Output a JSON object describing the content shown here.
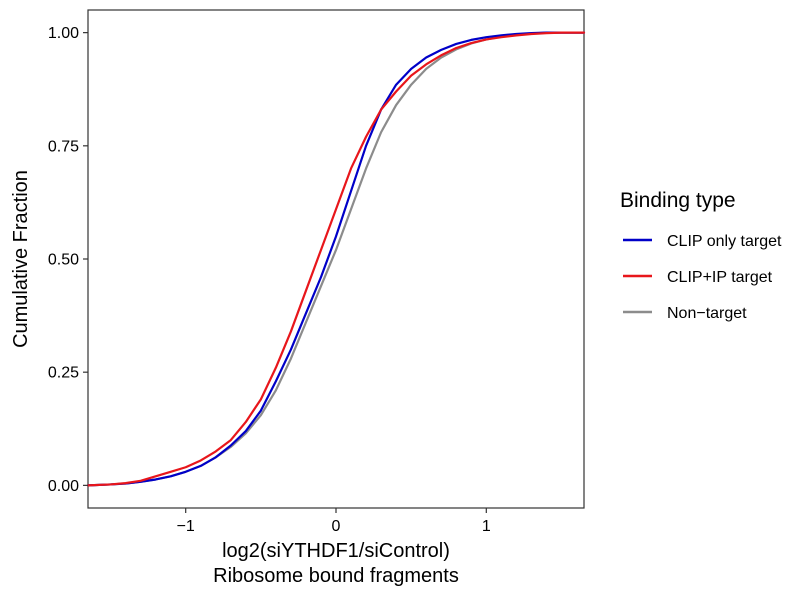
{
  "chart_data": {
    "type": "line",
    "xlabel": [
      "log2(siYTHDF1/siControl)",
      "Ribosome bound fragments"
    ],
    "ylabel": "Cumulative Fraction",
    "xlim": [
      -1.65,
      1.65
    ],
    "ylim": [
      -0.05,
      1.05
    ],
    "x_ticks": [
      -1,
      0,
      1
    ],
    "x_tick_labels": [
      "−1",
      "0",
      "1"
    ],
    "y_ticks": [
      0,
      0.25,
      0.5,
      0.75,
      1
    ],
    "y_tick_labels": [
      "0.00",
      "0.25",
      "0.50",
      "0.75",
      "1.00"
    ],
    "grid": false,
    "legend": {
      "title": "Binding type",
      "placement": "right"
    },
    "series": [
      {
        "name": "CLIP only target",
        "color": "#0000c8",
        "x": [
          -1.65,
          -1.5,
          -1.4,
          -1.3,
          -1.2,
          -1.1,
          -1.0,
          -0.9,
          -0.8,
          -0.7,
          -0.6,
          -0.5,
          -0.4,
          -0.3,
          -0.2,
          -0.1,
          0.0,
          0.1,
          0.2,
          0.3,
          0.4,
          0.5,
          0.6,
          0.7,
          0.8,
          0.9,
          1.0,
          1.1,
          1.2,
          1.3,
          1.4,
          1.5,
          1.65
        ],
        "y": [
          0.0,
          0.002,
          0.004,
          0.008,
          0.013,
          0.02,
          0.03,
          0.043,
          0.062,
          0.088,
          0.12,
          0.165,
          0.23,
          0.3,
          0.38,
          0.46,
          0.55,
          0.65,
          0.75,
          0.83,
          0.885,
          0.92,
          0.945,
          0.962,
          0.975,
          0.984,
          0.99,
          0.994,
          0.997,
          0.999,
          1.0,
          1.0,
          1.0
        ]
      },
      {
        "name": "CLIP+IP target",
        "color": "#e8161b",
        "x": [
          -1.65,
          -1.5,
          -1.4,
          -1.3,
          -1.2,
          -1.1,
          -1.0,
          -0.9,
          -0.8,
          -0.7,
          -0.6,
          -0.5,
          -0.4,
          -0.3,
          -0.2,
          -0.1,
          0.0,
          0.1,
          0.2,
          0.3,
          0.4,
          0.5,
          0.6,
          0.7,
          0.8,
          0.9,
          1.0,
          1.1,
          1.2,
          1.3,
          1.4,
          1.5,
          1.65
        ],
        "y": [
          0.0,
          0.002,
          0.005,
          0.01,
          0.02,
          0.03,
          0.04,
          0.055,
          0.075,
          0.1,
          0.14,
          0.19,
          0.26,
          0.34,
          0.43,
          0.52,
          0.61,
          0.7,
          0.77,
          0.83,
          0.87,
          0.905,
          0.93,
          0.95,
          0.966,
          0.977,
          0.985,
          0.99,
          0.994,
          0.997,
          0.999,
          1.0,
          1.0
        ]
      },
      {
        "name": "Non−target",
        "color": "#8c8c8c",
        "x": [
          -1.65,
          -1.5,
          -1.4,
          -1.3,
          -1.2,
          -1.1,
          -1.0,
          -0.9,
          -0.8,
          -0.7,
          -0.6,
          -0.5,
          -0.4,
          -0.3,
          -0.2,
          -0.1,
          0.0,
          0.1,
          0.2,
          0.3,
          0.4,
          0.5,
          0.6,
          0.7,
          0.8,
          0.9,
          1.0,
          1.1,
          1.2,
          1.3,
          1.4,
          1.5,
          1.65
        ],
        "y": [
          0.0,
          0.002,
          0.004,
          0.008,
          0.013,
          0.02,
          0.03,
          0.043,
          0.062,
          0.085,
          0.115,
          0.155,
          0.21,
          0.28,
          0.36,
          0.44,
          0.52,
          0.61,
          0.7,
          0.78,
          0.84,
          0.885,
          0.92,
          0.945,
          0.963,
          0.976,
          0.985,
          0.991,
          0.995,
          0.998,
          1.0,
          1.0,
          1.0
        ]
      }
    ]
  }
}
